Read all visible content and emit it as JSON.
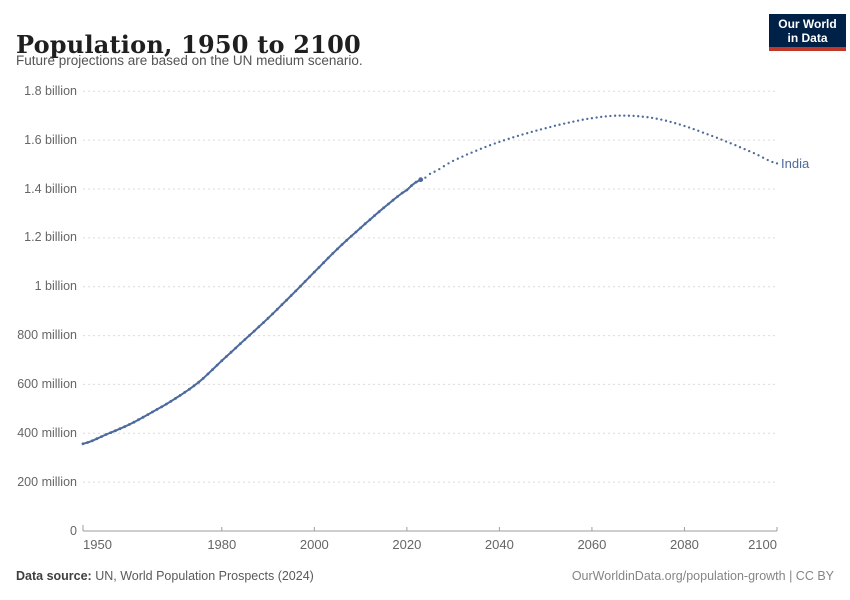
{
  "header": {
    "title": "Population, 1950 to 2100",
    "subtitle": "Future projections are based on the UN medium scenario."
  },
  "logo": {
    "line1": "Our World",
    "line2": "in Data",
    "bg_color": "#002147",
    "accent_color": "#C0372B"
  },
  "footer": {
    "source_label": "Data source:",
    "source_text": " UN, World Population Prospects (2024)",
    "credit": "OurWorldinData.org/population-growth | CC BY"
  },
  "chart_data": {
    "type": "line",
    "title": "Population, 1950 to 2100",
    "entity": "India",
    "entity_color": "#4C6A9C",
    "unit": "people (millions)",
    "xlim": [
      1950,
      2100
    ],
    "ylim_millions": [
      0,
      1800
    ],
    "grid": true,
    "x_ticks": [
      1950,
      1980,
      2000,
      2020,
      2040,
      2060,
      2080,
      2100
    ],
    "y_ticks": [
      {
        "value": 0,
        "label": "0"
      },
      {
        "value": 200,
        "label": "200 million"
      },
      {
        "value": 400,
        "label": "400 million"
      },
      {
        "value": 600,
        "label": "600 million"
      },
      {
        "value": 800,
        "label": "800 million"
      },
      {
        "value": 1000,
        "label": "1 billion"
      },
      {
        "value": 1200,
        "label": "1.2 billion"
      },
      {
        "value": 1400,
        "label": "1.4 billion"
      },
      {
        "value": 1600,
        "label": "1.6 billion"
      },
      {
        "value": 1800,
        "label": "1.8 billion"
      }
    ],
    "series": [
      {
        "name": "India (estimates)",
        "style": "solid",
        "anchors_year_millions": [
          [
            1950,
            357
          ],
          [
            1955,
            395
          ],
          [
            1960,
            436
          ],
          [
            1965,
            487
          ],
          [
            1970,
            543
          ],
          [
            1975,
            609
          ],
          [
            1980,
            697
          ],
          [
            1985,
            784
          ],
          [
            1990,
            871
          ],
          [
            1995,
            964
          ],
          [
            2000,
            1060
          ],
          [
            2005,
            1155
          ],
          [
            2010,
            1241
          ],
          [
            2015,
            1323
          ],
          [
            2020,
            1396
          ],
          [
            2023,
            1438
          ]
        ]
      },
      {
        "name": "India (UN medium projection)",
        "style": "dotted",
        "anchors_year_millions": [
          [
            2023,
            1438
          ],
          [
            2025,
            1462
          ],
          [
            2030,
            1515
          ],
          [
            2035,
            1557
          ],
          [
            2040,
            1593
          ],
          [
            2045,
            1623
          ],
          [
            2050,
            1649
          ],
          [
            2055,
            1672
          ],
          [
            2060,
            1690
          ],
          [
            2065,
            1700
          ],
          [
            2070,
            1698
          ],
          [
            2075,
            1684
          ],
          [
            2080,
            1658
          ],
          [
            2085,
            1624
          ],
          [
            2090,
            1587
          ],
          [
            2095,
            1547
          ],
          [
            2100,
            1505
          ]
        ]
      }
    ],
    "colors": {
      "grid": "#DBDBDB",
      "axis": "#9E9E9E",
      "tick_text": "#666666"
    }
  }
}
